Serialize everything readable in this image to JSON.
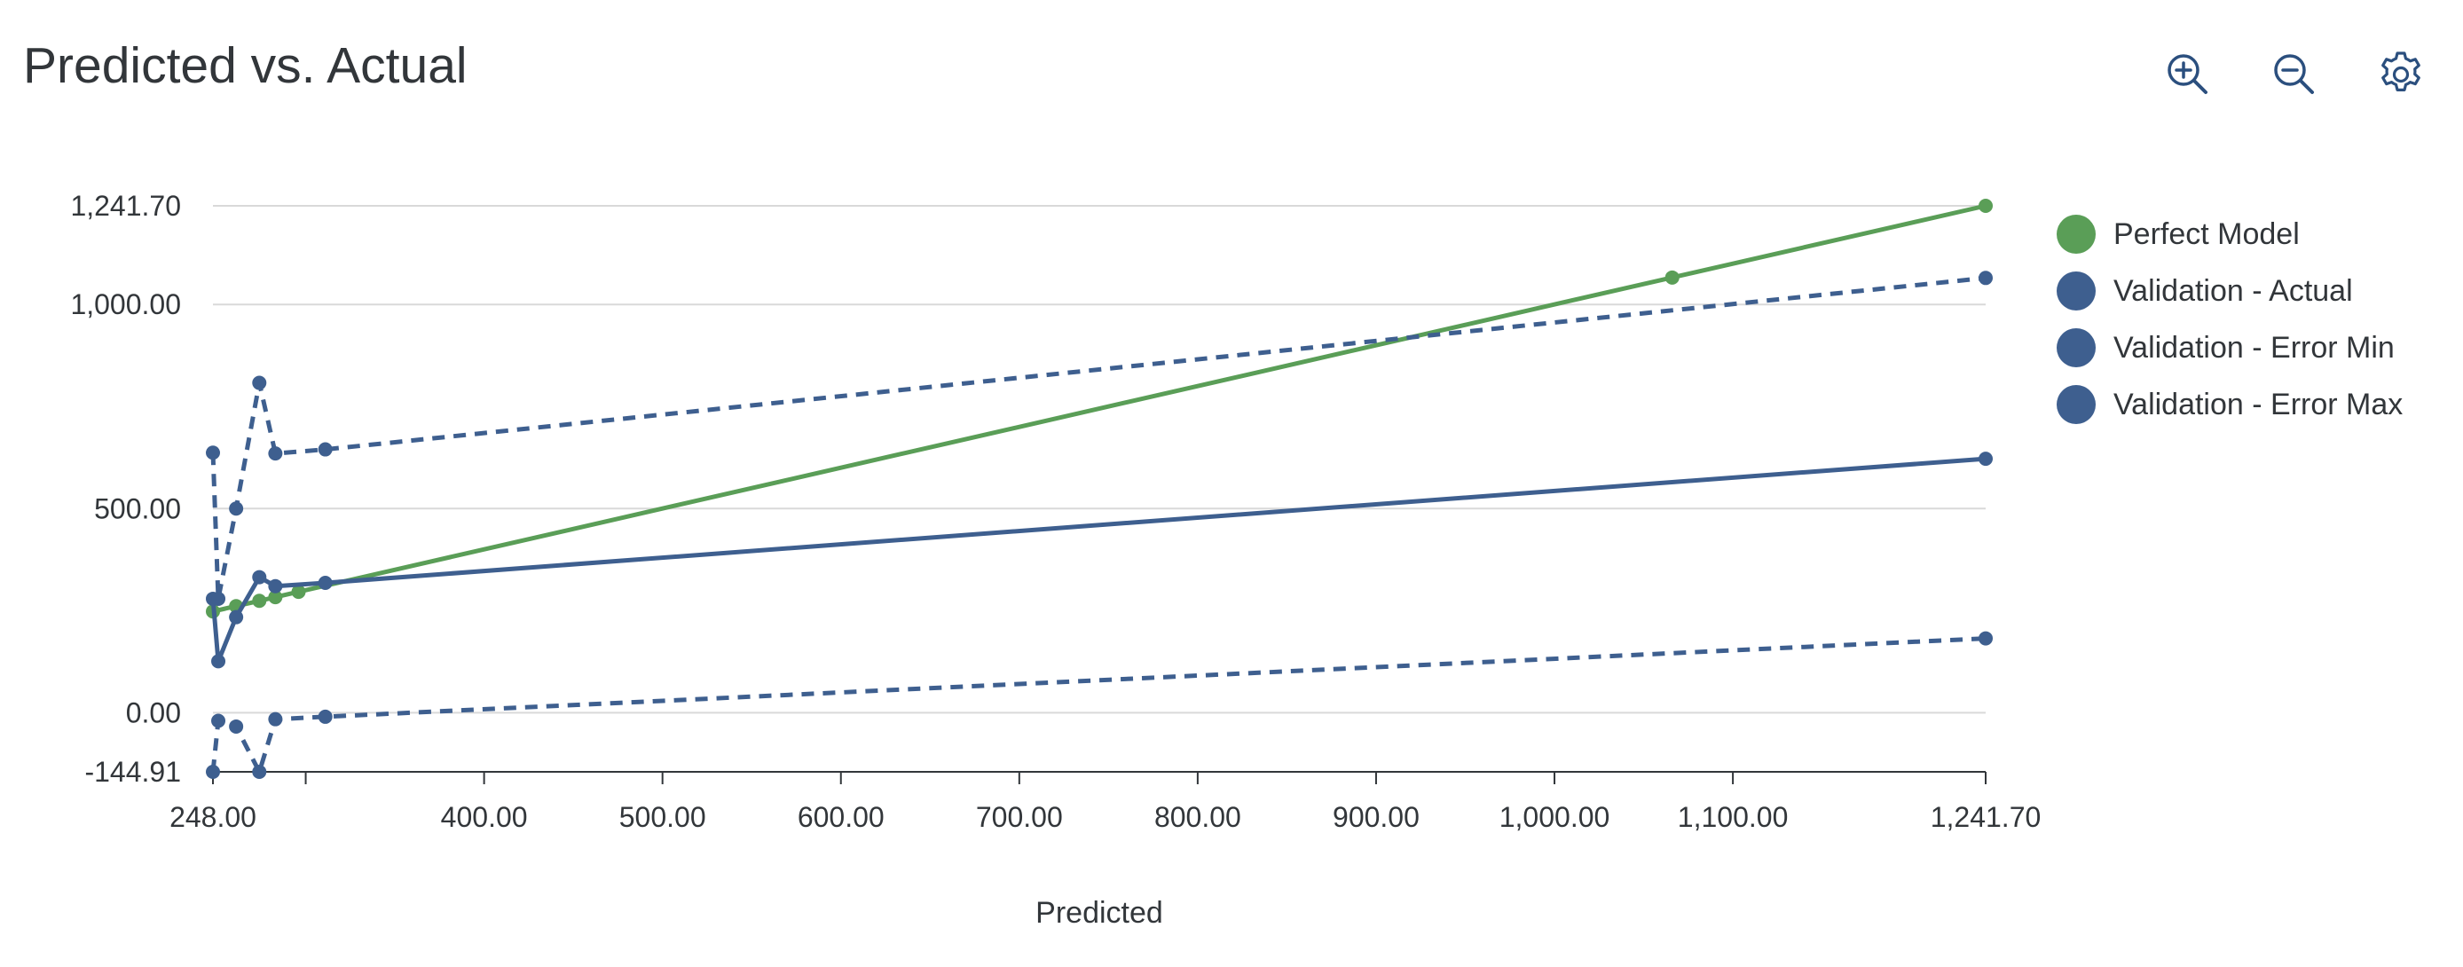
{
  "header": {
    "title": "Predicted vs. Actual",
    "toolbar": [
      {
        "name": "zoom-in-icon"
      },
      {
        "name": "zoom-out-icon"
      },
      {
        "name": "gear-icon"
      }
    ]
  },
  "colors": {
    "perfect": "#5a9e57",
    "validation": "#3e5f8f",
    "grid": "#d9d9d9",
    "axis": "#32363a"
  },
  "chart_data": {
    "type": "line",
    "title": "Predicted vs. Actual",
    "xlabel": "Predicted",
    "ylabel": "",
    "xlim": [
      248.0,
      1241.7
    ],
    "ylim": [
      -144.91,
      1241.7
    ],
    "x_ticks": [
      248.0,
      400.0,
      500.0,
      600.0,
      700.0,
      800.0,
      900.0,
      1000.0,
      1100.0,
      1241.7
    ],
    "x_tick_labels": [
      "248.00",
      "400.00",
      "500.00",
      "600.00",
      "700.00",
      "800.00",
      "900.00",
      "1,000.00",
      "1,100.00",
      "1,241.70"
    ],
    "y_ticks": [
      -144.91,
      0.0,
      500.0,
      1000.0,
      1241.7
    ],
    "y_tick_labels": [
      "-144.91",
      "0.00",
      "500.00",
      "1,000.00",
      "1,241.70"
    ],
    "grid": true,
    "legend_position": "right",
    "series": [
      {
        "name": "Perfect Model",
        "style": "solid",
        "color": "#5a9e57",
        "x": [
          248,
          261,
          274,
          283,
          296,
          1066,
          1241.7
        ],
        "y": [
          248,
          261,
          274,
          283,
          296,
          1066,
          1241.7
        ]
      },
      {
        "name": "Validation - Actual",
        "style": "solid",
        "color": "#3e5f8f",
        "x": [
          248,
          251,
          261,
          274,
          283,
          311,
          1241.7
        ],
        "y": [
          279,
          126,
          234,
          332,
          310,
          318,
          622
        ]
      },
      {
        "name": "Validation - Error Min",
        "style": "dashed",
        "color": "#3e5f8f",
        "x": [
          248,
          251,
          261,
          274,
          283,
          311,
          1241.7
        ],
        "y": [
          -144.91,
          -20,
          -34,
          -144.91,
          -16,
          -10,
          182
        ]
      },
      {
        "name": "Validation - Error Max",
        "style": "dashed",
        "color": "#3e5f8f",
        "x": [
          248,
          251,
          261,
          274,
          283,
          311,
          1241.7
        ],
        "y": [
          637,
          279,
          500,
          808,
          635,
          645,
          1065
        ]
      }
    ]
  }
}
